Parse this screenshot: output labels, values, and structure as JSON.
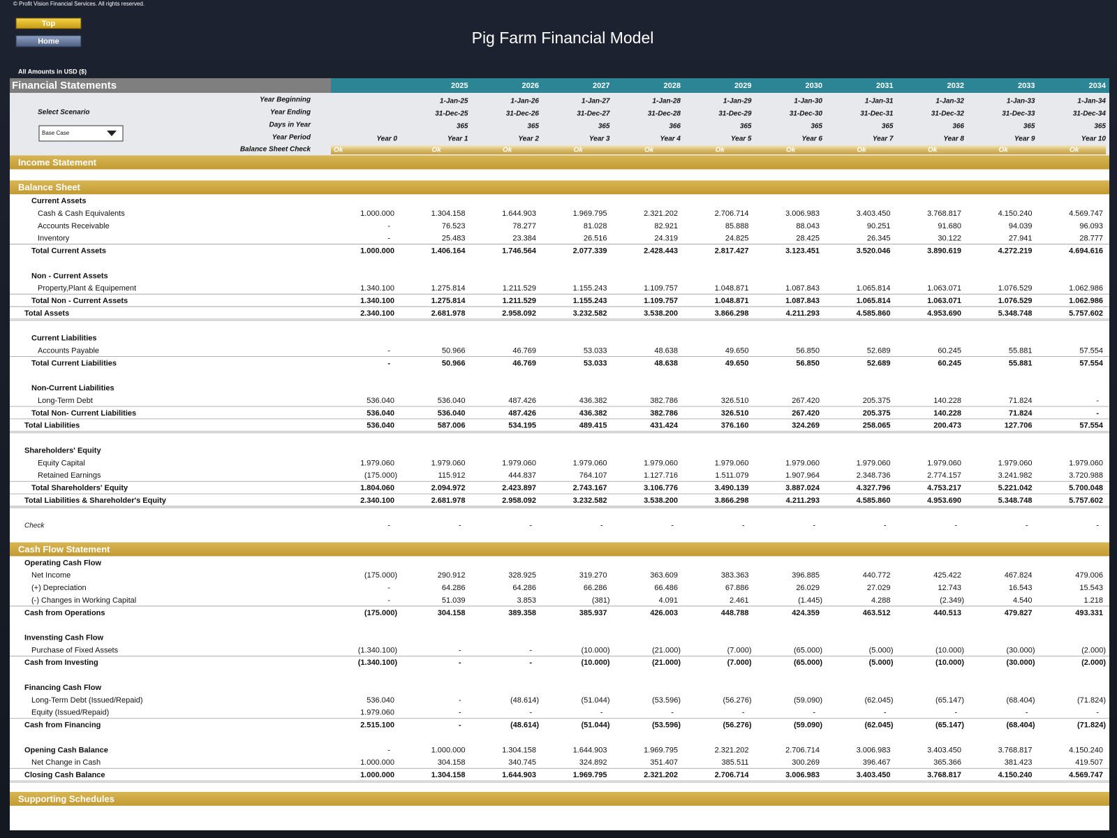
{
  "copyright": "© Profit Vision Financial Services. All rights reserved.",
  "buttons": [
    "Top",
    "Home"
  ],
  "title": "Pig Farm Financial Model",
  "amounts_note": "All Amounts in  USD ($)",
  "header": {
    "title": "Financial Statements",
    "years": [
      null,
      "2025",
      "2026",
      "2027",
      "2028",
      "2029",
      "2030",
      "2031",
      "2032",
      "2033",
      "2034"
    ],
    "scenario_label": "Select Scenario",
    "scenario_value": "Base Case",
    "rows": [
      {
        "label": "Year Beginning",
        "values": [
          null,
          "1-Jan-25",
          "1-Jan-26",
          "1-Jan-27",
          "1-Jan-28",
          "1-Jan-29",
          "1-Jan-30",
          "1-Jan-31",
          "1-Jan-32",
          "1-Jan-33",
          "1-Jan-34"
        ]
      },
      {
        "label": "Year Ending",
        "values": [
          null,
          "31-Dec-25",
          "31-Dec-26",
          "31-Dec-27",
          "31-Dec-28",
          "31-Dec-29",
          "31-Dec-30",
          "31-Dec-31",
          "31-Dec-32",
          "31-Dec-33",
          "31-Dec-34"
        ]
      },
      {
        "label": "Days in Year",
        "values": [
          null,
          "365",
          "365",
          "365",
          "366",
          "365",
          "365",
          "365",
          "366",
          "365",
          "365"
        ]
      },
      {
        "label": "Year Period",
        "values": [
          "Year 0",
          "Year 1",
          "Year 2",
          "Year 3",
          "Year 4",
          "Year 5",
          "Year 6",
          "Year 7",
          "Year 8",
          "Year 9",
          "Year 10"
        ]
      },
      {
        "label": "Balance Sheet Check",
        "kind": "check",
        "values": [
          "Ok",
          "Ok",
          "Ok",
          "Ok",
          "Ok",
          "Ok",
          "Ok",
          "Ok",
          "Ok",
          "Ok",
          "Ok"
        ]
      }
    ]
  },
  "sections": [
    {
      "title": "Income Statement",
      "rows": []
    },
    {
      "title": "Balance Sheet",
      "rows": [
        {
          "label": "Current Assets",
          "kind": "group",
          "level": 1
        },
        {
          "label": "Cash & Cash Equivalents",
          "kind": "item",
          "level": 2,
          "values": [
            "1.000.000",
            "1.304.158",
            "1.644.903",
            "1.969.795",
            "2.321.202",
            "2.706.714",
            "3.006.983",
            "3.403.450",
            "3.768.817",
            "4.150.240",
            "4.569.747"
          ]
        },
        {
          "label": "Accounts Receivable",
          "kind": "item",
          "level": 2,
          "values": [
            "-",
            "76.523",
            "78.277",
            "81.028",
            "82.921",
            "85.888",
            "88.043",
            "90.251",
            "91.680",
            "94.039",
            "96.093"
          ]
        },
        {
          "label": "Inventory",
          "kind": "item",
          "level": 2,
          "values": [
            "-",
            "25.483",
            "23.384",
            "26.516",
            "24.319",
            "24.825",
            "28.425",
            "26.345",
            "30.122",
            "27.941",
            "28.777"
          ]
        },
        {
          "label": "Total Current Assets",
          "kind": "subtotal",
          "level": 1,
          "values": [
            "1.000.000",
            "1.406.164",
            "1.746.564",
            "2.077.339",
            "2.428.443",
            "2.817.427",
            "3.123.451",
            "3.520.046",
            "3.890.619",
            "4.272.219",
            "4.694.616"
          ]
        },
        {
          "label": "Non - Current Assets",
          "kind": "group",
          "level": 1
        },
        {
          "label": "Property,Plant & Equipement",
          "kind": "item",
          "level": 2,
          "values": [
            "1.340.100",
            "1.275.814",
            "1.211.529",
            "1.155.243",
            "1.109.757",
            "1.048.871",
            "1.087.843",
            "1.065.814",
            "1.063.071",
            "1.076.529",
            "1.062.986"
          ]
        },
        {
          "label": "Total Non - Current Assets",
          "kind": "subtotal",
          "level": 1,
          "values": [
            "1.340.100",
            "1.275.814",
            "1.211.529",
            "1.155.243",
            "1.109.757",
            "1.048.871",
            "1.087.843",
            "1.065.814",
            "1.063.071",
            "1.076.529",
            "1.062.986"
          ]
        },
        {
          "label": "Total Assets",
          "kind": "total",
          "level": 0,
          "values": [
            "2.340.100",
            "2.681.978",
            "2.958.092",
            "3.232.582",
            "3.538.200",
            "3.866.298",
            "4.211.293",
            "4.585.860",
            "4.953.690",
            "5.348.748",
            "5.757.602"
          ]
        },
        {
          "label": "Current Liabilities",
          "kind": "group",
          "level": 1
        },
        {
          "label": "Accounts Payable",
          "kind": "item",
          "level": 2,
          "values": [
            "-",
            "50.966",
            "46.769",
            "53.033",
            "48.638",
            "49.650",
            "56.850",
            "52.689",
            "60.245",
            "55.881",
            "57.554"
          ]
        },
        {
          "label": "Total Current Liabilities",
          "kind": "subtotal",
          "level": 1,
          "values": [
            "-",
            "50.966",
            "46.769",
            "53.033",
            "48.638",
            "49.650",
            "56.850",
            "52.689",
            "60.245",
            "55.881",
            "57.554"
          ]
        },
        {
          "label": "Non-Current Liabilities",
          "kind": "group",
          "level": 1
        },
        {
          "label": "Long-Term Debt",
          "kind": "item",
          "level": 2,
          "values": [
            "536.040",
            "536.040",
            "487.426",
            "436.382",
            "382.786",
            "326.510",
            "267.420",
            "205.375",
            "140.228",
            "71.824",
            "-"
          ]
        },
        {
          "label": "Total Non- Current Liabilities",
          "kind": "subtotal",
          "level": 1,
          "values": [
            "536.040",
            "536.040",
            "487.426",
            "436.382",
            "382.786",
            "326.510",
            "267.420",
            "205.375",
            "140.228",
            "71.824",
            "-"
          ]
        },
        {
          "label": "Total Liabilities",
          "kind": "total",
          "level": 0,
          "values": [
            "536.040",
            "587.006",
            "534.195",
            "489.415",
            "431.424",
            "376.160",
            "324.269",
            "258.065",
            "200.473",
            "127.706",
            "57.554"
          ]
        },
        {
          "label": "Shareholders' Equity",
          "kind": "group",
          "level": 0
        },
        {
          "label": "Equity Capital",
          "kind": "item",
          "level": 2,
          "values": [
            "1.979.060",
            "1.979.060",
            "1.979.060",
            "1.979.060",
            "1.979.060",
            "1.979.060",
            "1.979.060",
            "1.979.060",
            "1.979.060",
            "1.979.060",
            "1.979.060"
          ]
        },
        {
          "label": "Retained Earnings",
          "kind": "item",
          "level": 2,
          "values": [
            "(175.000)",
            "115.912",
            "444.837",
            "764.107",
            "1.127.716",
            "1.511.079",
            "1.907.964",
            "2.348.736",
            "2.774.157",
            "3.241.982",
            "3.720.988"
          ]
        },
        {
          "label": "Total Shareholders' Equity",
          "kind": "subtotal",
          "level": 1,
          "values": [
            "1.804.060",
            "2.094.972",
            "2.423.897",
            "2.743.167",
            "3.106.776",
            "3.490.139",
            "3.887.024",
            "4.327.796",
            "4.753.217",
            "5.221.042",
            "5.700.048"
          ]
        },
        {
          "label": "Total Liabilities & Shareholder's Equity",
          "kind": "total",
          "level": 0,
          "values": [
            "2.340.100",
            "2.681.978",
            "2.958.092",
            "3.232.582",
            "3.538.200",
            "3.866.298",
            "4.211.293",
            "4.585.860",
            "4.953.690",
            "5.348.748",
            "5.757.602"
          ]
        },
        {
          "label": "Check",
          "kind": "check",
          "level": 0,
          "values": [
            "-",
            "-",
            "-",
            "-",
            "-",
            "-",
            "-",
            "-",
            "-",
            "-",
            "-"
          ]
        }
      ]
    },
    {
      "title": "Cash Flow Statement",
      "rows": [
        {
          "label": "Operating Cash Flow",
          "kind": "group",
          "level": 0
        },
        {
          "label": "Net Income",
          "kind": "item",
          "level": 1,
          "values": [
            "(175.000)",
            "290.912",
            "328.925",
            "319.270",
            "363.609",
            "383.363",
            "396.885",
            "440.772",
            "425.422",
            "467.824",
            "479.006"
          ]
        },
        {
          "label": "(+) Depreciation",
          "kind": "item",
          "level": 1,
          "values": [
            "-",
            "64.286",
            "64.286",
            "66.286",
            "66.486",
            "67.886",
            "26.029",
            "27.029",
            "12.743",
            "16.543",
            "15.543"
          ]
        },
        {
          "label": "(-) Changes in Working Capital",
          "kind": "item",
          "level": 1,
          "values": [
            "-",
            "51.039",
            "3.853",
            "(381)",
            "4.091",
            "2.461",
            "(1.445)",
            "4.288",
            "(2.349)",
            "4.540",
            "1.218"
          ]
        },
        {
          "label": "Cash from Operations",
          "kind": "subtotal",
          "level": 0,
          "values": [
            "(175.000)",
            "304.158",
            "389.358",
            "385.937",
            "426.003",
            "448.788",
            "424.359",
            "463.512",
            "440.513",
            "479.827",
            "493.331"
          ]
        },
        {
          "label": "Invensting Cash Flow",
          "kind": "group",
          "level": 0
        },
        {
          "label": "Purchase of Fixed Assets",
          "kind": "item",
          "level": 1,
          "values": [
            "(1.340.100)",
            "-",
            "-",
            "(10.000)",
            "(21.000)",
            "(7.000)",
            "(65.000)",
            "(5.000)",
            "(10.000)",
            "(30.000)",
            "(2.000)"
          ]
        },
        {
          "label": "Cash from Investing",
          "kind": "subtotal",
          "level": 0,
          "values": [
            "(1.340.100)",
            "-",
            "-",
            "(10.000)",
            "(21.000)",
            "(7.000)",
            "(65.000)",
            "(5.000)",
            "(10.000)",
            "(30.000)",
            "(2.000)"
          ]
        },
        {
          "label": "Financing Cash Flow",
          "kind": "group",
          "level": 0
        },
        {
          "label": "Long-Term Debt (Issued/Repaid)",
          "kind": "item",
          "level": 1,
          "values": [
            "536.040",
            "-",
            "(48.614)",
            "(51.044)",
            "(53.596)",
            "(56.276)",
            "(59.090)",
            "(62.045)",
            "(65.147)",
            "(68.404)",
            "(71.824)"
          ]
        },
        {
          "label": "Equity (Issued/Repaid)",
          "kind": "item",
          "level": 1,
          "values": [
            "1.979.060",
            "-",
            "-",
            "-",
            "-",
            "-",
            "-",
            "-",
            "-",
            "-",
            "-"
          ]
        },
        {
          "label": "Cash from Financing",
          "kind": "subtotal",
          "level": 0,
          "values": [
            "2.515.100",
            "-",
            "(48.614)",
            "(51.044)",
            "(53.596)",
            "(56.276)",
            "(59.090)",
            "(62.045)",
            "(65.147)",
            "(68.404)",
            "(71.824)"
          ]
        },
        {
          "label": "Opening Cash Balance",
          "kind": "group",
          "level": 0,
          "values": [
            "-",
            "1.000.000",
            "1.304.158",
            "1.644.903",
            "1.969.795",
            "2.321.202",
            "2.706.714",
            "3.006.983",
            "3.403.450",
            "3.768.817",
            "4.150.240"
          ]
        },
        {
          "label": "Net Change in Cash",
          "kind": "item",
          "level": 1,
          "values": [
            "1.000.000",
            "304.158",
            "340.745",
            "324.892",
            "351.407",
            "385.511",
            "300.269",
            "396.467",
            "365.366",
            "381.423",
            "419.507"
          ]
        },
        {
          "label": "Closing Cash Balance",
          "kind": "total",
          "level": 0,
          "values": [
            "1.000.000",
            "1.304.158",
            "1.644.903",
            "1.969.795",
            "2.321.202",
            "2.706.714",
            "3.006.983",
            "3.403.450",
            "3.768.817",
            "4.150.240",
            "4.569.747"
          ]
        }
      ]
    },
    {
      "title": "Supporting Schedules",
      "rows": []
    }
  ]
}
